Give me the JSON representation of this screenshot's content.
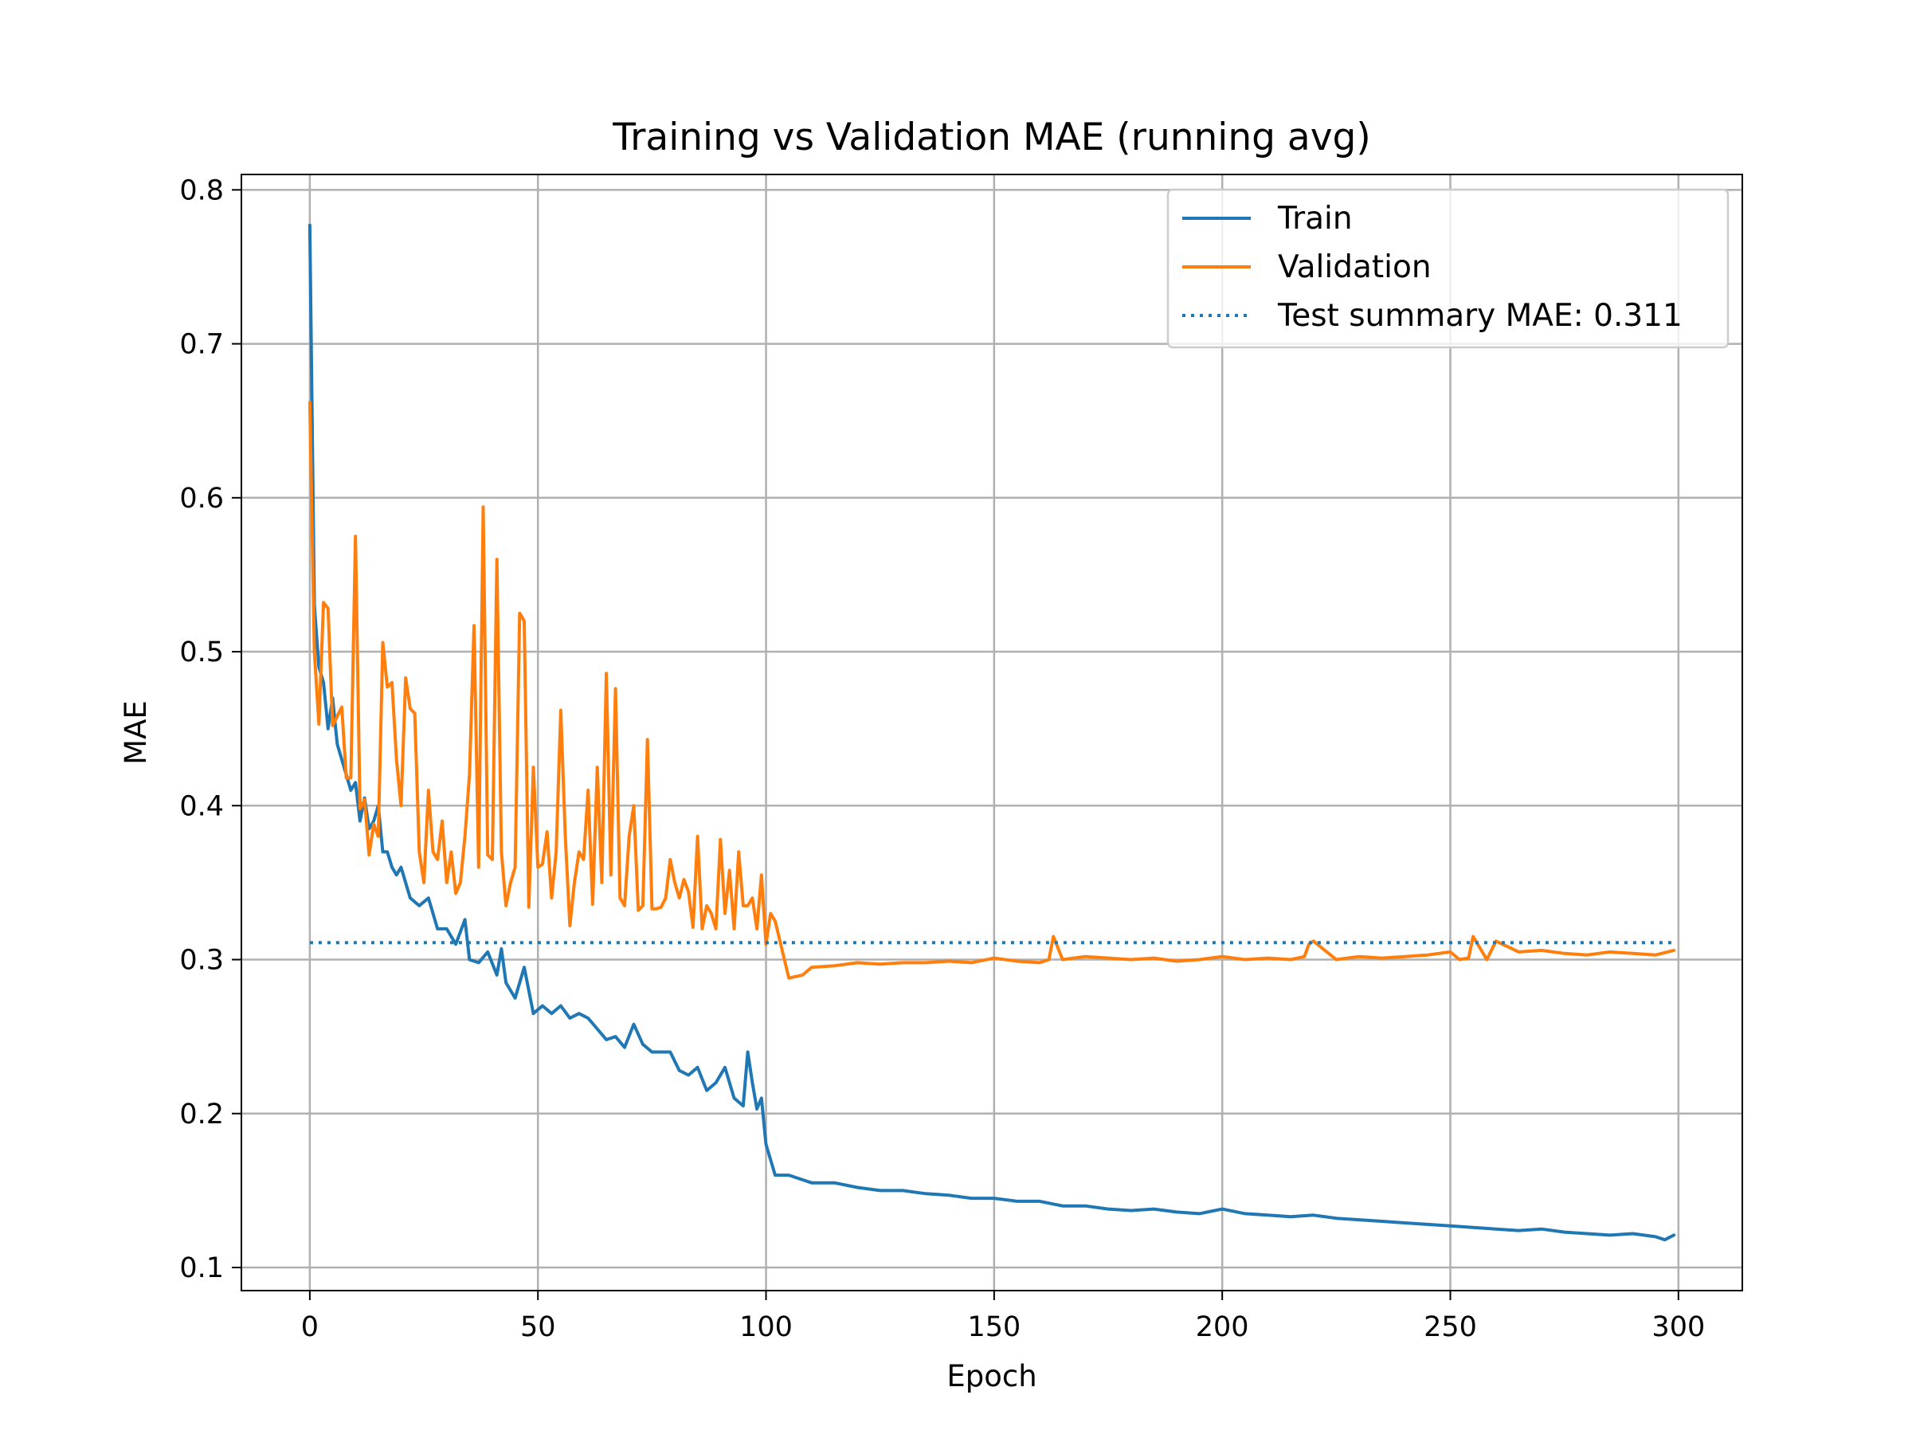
{
  "chart_data": {
    "type": "line",
    "title": "Training vs Validation MAE (running avg)",
    "xlabel": "Epoch",
    "ylabel": "MAE",
    "xlim": [
      -15,
      314
    ],
    "ylim": [
      0.085,
      0.81
    ],
    "xticks": [
      "0",
      "50",
      "100",
      "150",
      "200",
      "250",
      "300"
    ],
    "yticks": [
      "0.1",
      "0.2",
      "0.3",
      "0.4",
      "0.5",
      "0.6",
      "0.7",
      "0.8"
    ],
    "grid": true,
    "legend_position": "top-right",
    "series": [
      {
        "name": "Train",
        "color": "#1f77b4",
        "style": "solid",
        "x": [
          0,
          1,
          2,
          3,
          4,
          5,
          6,
          7,
          8,
          9,
          10,
          11,
          12,
          13,
          14,
          15,
          16,
          17,
          18,
          19,
          20,
          22,
          24,
          26,
          28,
          30,
          32,
          34,
          35,
          37,
          39,
          41,
          42,
          43,
          45,
          47,
          49,
          51,
          53,
          55,
          57,
          59,
          61,
          63,
          65,
          67,
          69,
          71,
          73,
          75,
          77,
          79,
          81,
          83,
          85,
          87,
          89,
          91,
          93,
          95,
          96,
          97,
          98,
          99,
          100,
          102,
          105,
          110,
          115,
          120,
          125,
          130,
          135,
          140,
          145,
          150,
          155,
          160,
          165,
          170,
          175,
          180,
          185,
          190,
          195,
          200,
          205,
          210,
          215,
          220,
          225,
          230,
          235,
          240,
          245,
          250,
          255,
          260,
          265,
          270,
          275,
          280,
          285,
          290,
          295,
          297,
          299
        ],
        "values": [
          0.777,
          0.53,
          0.49,
          0.48,
          0.45,
          0.47,
          0.44,
          0.43,
          0.42,
          0.41,
          0.415,
          0.39,
          0.405,
          0.385,
          0.39,
          0.4,
          0.37,
          0.37,
          0.36,
          0.355,
          0.36,
          0.34,
          0.335,
          0.34,
          0.32,
          0.32,
          0.31,
          0.326,
          0.3,
          0.298,
          0.305,
          0.29,
          0.307,
          0.285,
          0.275,
          0.295,
          0.265,
          0.27,
          0.265,
          0.27,
          0.262,
          0.265,
          0.262,
          0.255,
          0.248,
          0.25,
          0.243,
          0.258,
          0.245,
          0.24,
          0.24,
          0.24,
          0.228,
          0.225,
          0.23,
          0.215,
          0.22,
          0.23,
          0.21,
          0.205,
          0.24,
          0.22,
          0.203,
          0.21,
          0.18,
          0.16,
          0.16,
          0.155,
          0.155,
          0.152,
          0.15,
          0.15,
          0.148,
          0.147,
          0.145,
          0.145,
          0.143,
          0.143,
          0.14,
          0.14,
          0.138,
          0.137,
          0.138,
          0.136,
          0.135,
          0.138,
          0.135,
          0.134,
          0.133,
          0.134,
          0.132,
          0.131,
          0.13,
          0.129,
          0.128,
          0.127,
          0.126,
          0.125,
          0.124,
          0.125,
          0.123,
          0.122,
          0.121,
          0.122,
          0.12,
          0.118,
          0.121
        ]
      },
      {
        "name": "Validation",
        "color": "#ff7f0e",
        "style": "solid",
        "x": [
          0,
          1,
          2,
          3,
          4,
          5,
          6,
          7,
          8,
          9,
          10,
          11,
          12,
          13,
          14,
          15,
          16,
          17,
          18,
          19,
          20,
          21,
          22,
          23,
          24,
          25,
          26,
          27,
          28,
          29,
          30,
          31,
          32,
          33,
          34,
          35,
          36,
          37,
          38,
          39,
          40,
          41,
          42,
          43,
          44,
          45,
          46,
          47,
          48,
          49,
          50,
          51,
          52,
          53,
          54,
          55,
          56,
          57,
          58,
          59,
          60,
          61,
          62,
          63,
          64,
          65,
          66,
          67,
          68,
          69,
          70,
          71,
          72,
          73,
          74,
          75,
          76,
          77,
          78,
          79,
          80,
          81,
          82,
          83,
          84,
          85,
          86,
          87,
          88,
          89,
          90,
          91,
          92,
          93,
          94,
          95,
          96,
          97,
          98,
          99,
          100,
          101,
          102,
          105,
          108,
          110,
          115,
          120,
          125,
          130,
          135,
          140,
          145,
          150,
          155,
          160,
          162,
          163,
          165,
          170,
          175,
          180,
          185,
          190,
          195,
          200,
          205,
          210,
          215,
          218,
          219,
          220,
          225,
          230,
          235,
          240,
          245,
          250,
          252,
          254,
          255,
          258,
          260,
          265,
          270,
          275,
          280,
          285,
          290,
          295,
          299
        ],
        "values": [
          0.662,
          0.5,
          0.453,
          0.532,
          0.528,
          0.452,
          0.458,
          0.464,
          0.418,
          0.418,
          0.575,
          0.398,
          0.404,
          0.368,
          0.388,
          0.38,
          0.506,
          0.477,
          0.48,
          0.43,
          0.4,
          0.483,
          0.463,
          0.46,
          0.37,
          0.35,
          0.41,
          0.37,
          0.365,
          0.39,
          0.35,
          0.37,
          0.343,
          0.35,
          0.38,
          0.42,
          0.517,
          0.36,
          0.594,
          0.368,
          0.365,
          0.56,
          0.37,
          0.335,
          0.35,
          0.36,
          0.525,
          0.52,
          0.334,
          0.425,
          0.36,
          0.362,
          0.383,
          0.34,
          0.37,
          0.462,
          0.38,
          0.322,
          0.35,
          0.37,
          0.365,
          0.41,
          0.336,
          0.425,
          0.35,
          0.486,
          0.355,
          0.476,
          0.34,
          0.335,
          0.38,
          0.4,
          0.332,
          0.335,
          0.443,
          0.333,
          0.333,
          0.334,
          0.34,
          0.365,
          0.35,
          0.34,
          0.352,
          0.344,
          0.321,
          0.38,
          0.32,
          0.335,
          0.33,
          0.32,
          0.378,
          0.33,
          0.358,
          0.32,
          0.37,
          0.335,
          0.335,
          0.34,
          0.32,
          0.355,
          0.31,
          0.33,
          0.325,
          0.288,
          0.29,
          0.295,
          0.296,
          0.298,
          0.297,
          0.298,
          0.298,
          0.299,
          0.298,
          0.301,
          0.299,
          0.298,
          0.3,
          0.315,
          0.3,
          0.302,
          0.301,
          0.3,
          0.301,
          0.299,
          0.3,
          0.302,
          0.3,
          0.301,
          0.3,
          0.302,
          0.31,
          0.312,
          0.3,
          0.302,
          0.301,
          0.302,
          0.303,
          0.305,
          0.3,
          0.301,
          0.315,
          0.3,
          0.312,
          0.305,
          0.306,
          0.304,
          0.303,
          0.305,
          0.304,
          0.303,
          0.306
        ]
      },
      {
        "name": "Test summary MAE: 0.311",
        "color": "#1f77b4",
        "style": "dotted",
        "x": [
          0,
          299
        ],
        "values": [
          0.311,
          0.311
        ]
      }
    ]
  }
}
